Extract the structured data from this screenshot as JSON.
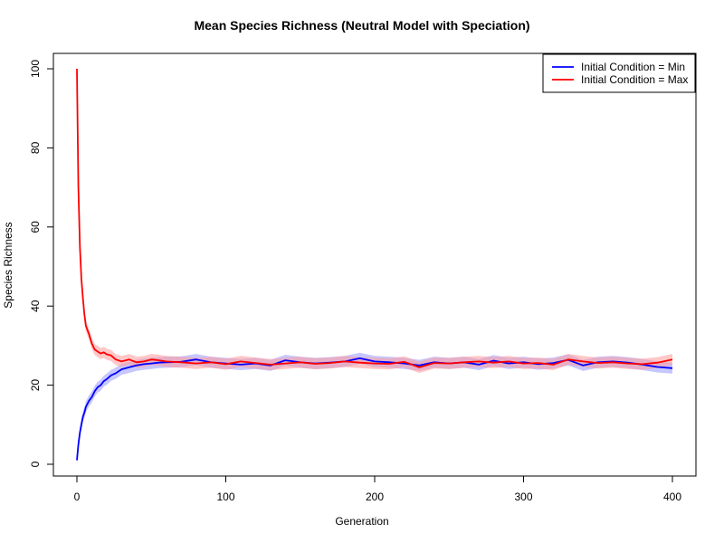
{
  "chart_data": {
    "type": "line",
    "title": "Mean Species Richness (Neutral Model with Speciation)",
    "xlabel": "Generation",
    "ylabel": "Species Richness",
    "xlim": [
      0,
      400
    ],
    "ylim": [
      0,
      100
    ],
    "xticks": [
      0,
      100,
      200,
      300,
      400
    ],
    "yticks": [
      0,
      20,
      40,
      60,
      80,
      100
    ],
    "grid": false,
    "legend_position": "top-right",
    "confidence_band": true,
    "series": [
      {
        "name": "Initial Condition = Min",
        "color": "#0000ff",
        "band_color": "#9999ff",
        "x": [
          0,
          1,
          2,
          3,
          4,
          5,
          6,
          8,
          10,
          12,
          14,
          16,
          18,
          20,
          23,
          26,
          30,
          35,
          40,
          45,
          50,
          55,
          60,
          70,
          80,
          90,
          100,
          110,
          120,
          130,
          140,
          150,
          160,
          170,
          180,
          190,
          200,
          210,
          220,
          230,
          240,
          250,
          260,
          270,
          280,
          290,
          300,
          310,
          320,
          330,
          340,
          350,
          360,
          370,
          380,
          390,
          400
        ],
        "y": [
          1,
          5,
          8,
          10,
          12,
          13,
          14.5,
          16,
          17,
          18.5,
          19.5,
          20,
          21,
          21.5,
          22.5,
          23,
          24,
          24.5,
          25,
          25.3,
          25.5,
          25.7,
          25.8,
          25.9,
          26.5,
          25.8,
          25.5,
          25.2,
          25.5,
          25.0,
          26.3,
          25.8,
          25.5,
          25.7,
          26.0,
          26.8,
          26.0,
          25.8,
          25.5,
          25.0,
          25.8,
          25.5,
          25.8,
          25.2,
          26.2,
          25.5,
          25.8,
          25.3,
          25.6,
          26.4,
          25.0,
          25.8,
          26.0,
          25.7,
          25.2,
          24.6,
          24.3
        ]
      },
      {
        "name": "Initial Condition = Max",
        "color": "#ff0000",
        "band_color": "#ff9999",
        "x": [
          0,
          1,
          2,
          3,
          4,
          5,
          6,
          8,
          10,
          12,
          14,
          16,
          18,
          20,
          23,
          26,
          30,
          35,
          40,
          45,
          50,
          55,
          60,
          70,
          80,
          90,
          100,
          110,
          120,
          130,
          140,
          150,
          160,
          170,
          180,
          190,
          200,
          210,
          220,
          230,
          240,
          250,
          260,
          270,
          280,
          290,
          300,
          310,
          320,
          330,
          340,
          350,
          360,
          370,
          380,
          390,
          400
        ],
        "y": [
          100,
          70,
          55,
          47,
          42,
          38,
          35,
          33,
          30.5,
          29,
          28.5,
          28,
          28.3,
          27.8,
          27.5,
          26.5,
          26.0,
          26.5,
          25.8,
          26.0,
          26.5,
          26.3,
          26.0,
          25.8,
          25.5,
          25.8,
          25.3,
          26.0,
          25.6,
          25.2,
          25.5,
          25.8,
          25.4,
          25.6,
          26.0,
          25.7,
          25.5,
          25.4,
          25.9,
          24.5,
          25.6,
          25.5,
          25.8,
          26.0,
          25.7,
          26.0,
          25.5,
          25.6,
          25.2,
          26.5,
          26.0,
          25.6,
          25.8,
          25.5,
          25.3,
          25.7,
          26.5
        ]
      }
    ]
  }
}
